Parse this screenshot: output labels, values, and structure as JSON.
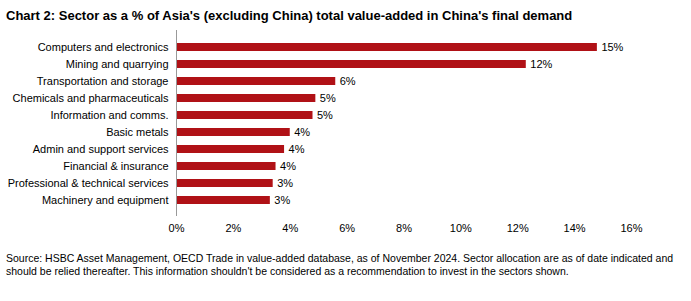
{
  "chart_data": {
    "type": "bar",
    "orientation": "horizontal",
    "title": "Chart 2: Sector as a % of Asia's (excluding China) total value-added in China's final demand",
    "caption": "Source: HSBC Asset Management, OECD Trade in value-added database, as of November 2024. Sector allocation are as of date indicated and should be relied thereafter. This information shouldn't be considered as a recommendation to invest in the sectors shown.",
    "categories": [
      "Computers and electronics",
      "Mining and quarrying",
      "Transportation and storage",
      "Chemicals and pharmaceuticals",
      "Information and comms.",
      "Basic metals",
      "Admin and support services",
      "Financial & insurance",
      "Professional & technical services",
      "Machinery and equipment"
    ],
    "values": [
      14.8,
      12.3,
      5.6,
      4.9,
      4.8,
      4.0,
      3.8,
      3.5,
      3.4,
      3.3
    ],
    "value_labels": [
      "15%",
      "12%",
      "6%",
      "5%",
      "5%",
      "4%",
      "4%",
      "4%",
      "3%",
      "3%"
    ],
    "color": "#b01116",
    "data_labels": true,
    "grid": false,
    "xlim": [
      0,
      16
    ],
    "xticks": [
      {
        "value": 0,
        "label": "0%"
      },
      {
        "value": 2,
        "label": "2%"
      },
      {
        "value": 4,
        "label": "4%"
      },
      {
        "value": 6,
        "label": "6%"
      },
      {
        "value": 8,
        "label": "8%"
      },
      {
        "value": 10,
        "label": "10%"
      },
      {
        "value": 12,
        "label": "12%"
      },
      {
        "value": 14,
        "label": "14%"
      },
      {
        "value": 16,
        "label": "16%"
      }
    ]
  }
}
